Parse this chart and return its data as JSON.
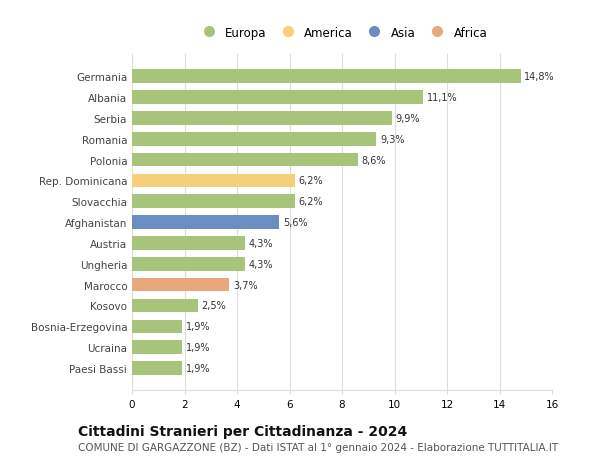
{
  "countries": [
    "Germania",
    "Albania",
    "Serbia",
    "Romania",
    "Polonia",
    "Rep. Dominicana",
    "Slovacchia",
    "Afghanistan",
    "Austria",
    "Ungheria",
    "Marocco",
    "Kosovo",
    "Bosnia-Erzegovina",
    "Ucraina",
    "Paesi Bassi"
  ],
  "values": [
    14.8,
    11.1,
    9.9,
    9.3,
    8.6,
    6.2,
    6.2,
    5.6,
    4.3,
    4.3,
    3.7,
    2.5,
    1.9,
    1.9,
    1.9
  ],
  "categories": [
    "Europa",
    "Europa",
    "Europa",
    "Europa",
    "Europa",
    "America",
    "Europa",
    "Asia",
    "Europa",
    "Europa",
    "Africa",
    "Europa",
    "Europa",
    "Europa",
    "Europa"
  ],
  "color_map": {
    "Europa": "#a8c47a",
    "America": "#f5d07a",
    "Asia": "#6b8dc4",
    "Africa": "#e8a87c"
  },
  "legend_order": [
    "Europa",
    "America",
    "Asia",
    "Africa"
  ],
  "legend_colors": {
    "Europa": "#a8c47a",
    "America": "#f5d07a",
    "Asia": "#6b8dc4",
    "Africa": "#e8a87c"
  },
  "xlim": [
    0,
    16
  ],
  "xticks": [
    0,
    2,
    4,
    6,
    8,
    10,
    12,
    14,
    16
  ],
  "title": "Cittadini Stranieri per Cittadinanza - 2024",
  "subtitle": "COMUNE DI GARGAZZONE (BZ) - Dati ISTAT al 1° gennaio 2024 - Elaborazione TUTTITALIA.IT",
  "title_fontsize": 10,
  "subtitle_fontsize": 7.5,
  "background_color": "#ffffff",
  "grid_color": "#dddddd",
  "bar_height": 0.65
}
